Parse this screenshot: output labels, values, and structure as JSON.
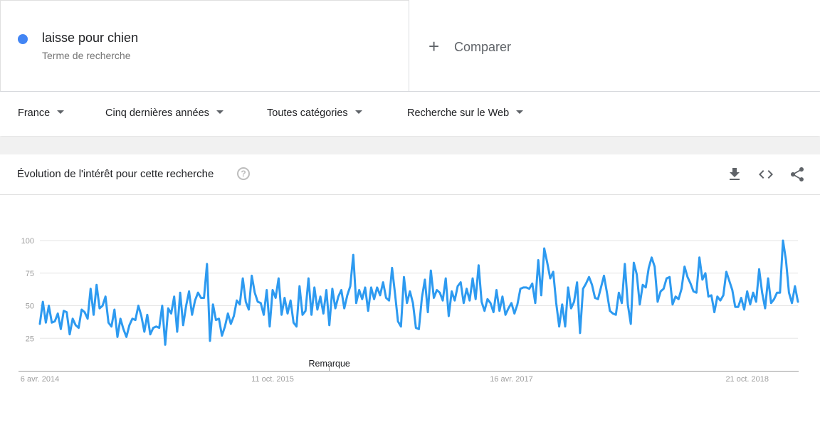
{
  "term": {
    "title": "laisse pour chien",
    "subtitle": "Terme de recherche",
    "color": "#4285f4"
  },
  "compare": {
    "icon": "plus-icon",
    "label": "Comparer"
  },
  "filters": [
    {
      "label": "France"
    },
    {
      "label": "Cinq dernières années"
    },
    {
      "label": "Toutes catégories"
    },
    {
      "label": "Recherche sur le Web"
    }
  ],
  "panel": {
    "title": "Évolution de l'intérêt pour cette recherche",
    "help_icon": "help-icon",
    "tools": [
      "download-icon",
      "embed-code-icon",
      "share-icon"
    ]
  },
  "chart_data": {
    "type": "line",
    "series_color": "#2d9af0",
    "ylim": [
      0,
      100
    ],
    "yticks": [
      25,
      50,
      75,
      100
    ],
    "grid": true,
    "x_tick_labels": [
      {
        "label": "6 avr. 2014",
        "index": 0
      },
      {
        "label": "11 oct. 2015",
        "index": 78
      },
      {
        "label": "16 avr. 2017",
        "index": 158
      },
      {
        "label": "21 oct. 2018",
        "index": 237
      }
    ],
    "annotation": {
      "label": "Remarque",
      "index": 97
    },
    "values": [
      36,
      53,
      37,
      50,
      37,
      38,
      44,
      32,
      46,
      45,
      28,
      40,
      35,
      33,
      47,
      45,
      40,
      63,
      43,
      66,
      48,
      50,
      57,
      37,
      34,
      47,
      26,
      40,
      32,
      26,
      35,
      40,
      39,
      50,
      42,
      30,
      43,
      28,
      33,
      34,
      33,
      50,
      20,
      48,
      44,
      57,
      30,
      60,
      35,
      50,
      61,
      43,
      54,
      60,
      56,
      56,
      82,
      23,
      51,
      39,
      40,
      27,
      34,
      44,
      36,
      42,
      54,
      51,
      71,
      53,
      47,
      73,
      60,
      53,
      52,
      43,
      62,
      34,
      62,
      56,
      71,
      43,
      56,
      44,
      54,
      37,
      34,
      65,
      43,
      46,
      71,
      43,
      64,
      47,
      57,
      44,
      62,
      35,
      63,
      48,
      57,
      62,
      48,
      58,
      65,
      89,
      52,
      62,
      55,
      64,
      46,
      64,
      55,
      64,
      58,
      68,
      56,
      54,
      79,
      59,
      38,
      34,
      72,
      52,
      61,
      52,
      33,
      32,
      56,
      70,
      45,
      77,
      56,
      62,
      60,
      54,
      71,
      42,
      61,
      54,
      65,
      68,
      52,
      63,
      54,
      71,
      55,
      81,
      53,
      46,
      55,
      52,
      45,
      62,
      46,
      57,
      43,
      48,
      52,
      44,
      51,
      63,
      64,
      64,
      63,
      67,
      52,
      85,
      58,
      94,
      83,
      71,
      76,
      52,
      34,
      51,
      34,
      64,
      48,
      53,
      68,
      29,
      63,
      67,
      72,
      66,
      56,
      55,
      64,
      73,
      60,
      46,
      44,
      43,
      60,
      52,
      82,
      51,
      36,
      83,
      74,
      51,
      66,
      64,
      79,
      87,
      80,
      53,
      61,
      63,
      71,
      72,
      51,
      57,
      55,
      63,
      80,
      72,
      67,
      61,
      60,
      87,
      70,
      75,
      57,
      58,
      45,
      57,
      54,
      58,
      76,
      69,
      62,
      49,
      49,
      56,
      47,
      61,
      51,
      60,
      53,
      78,
      60,
      48,
      71,
      52,
      55,
      60,
      60,
      100,
      85,
      60,
      52,
      65,
      53
    ]
  }
}
